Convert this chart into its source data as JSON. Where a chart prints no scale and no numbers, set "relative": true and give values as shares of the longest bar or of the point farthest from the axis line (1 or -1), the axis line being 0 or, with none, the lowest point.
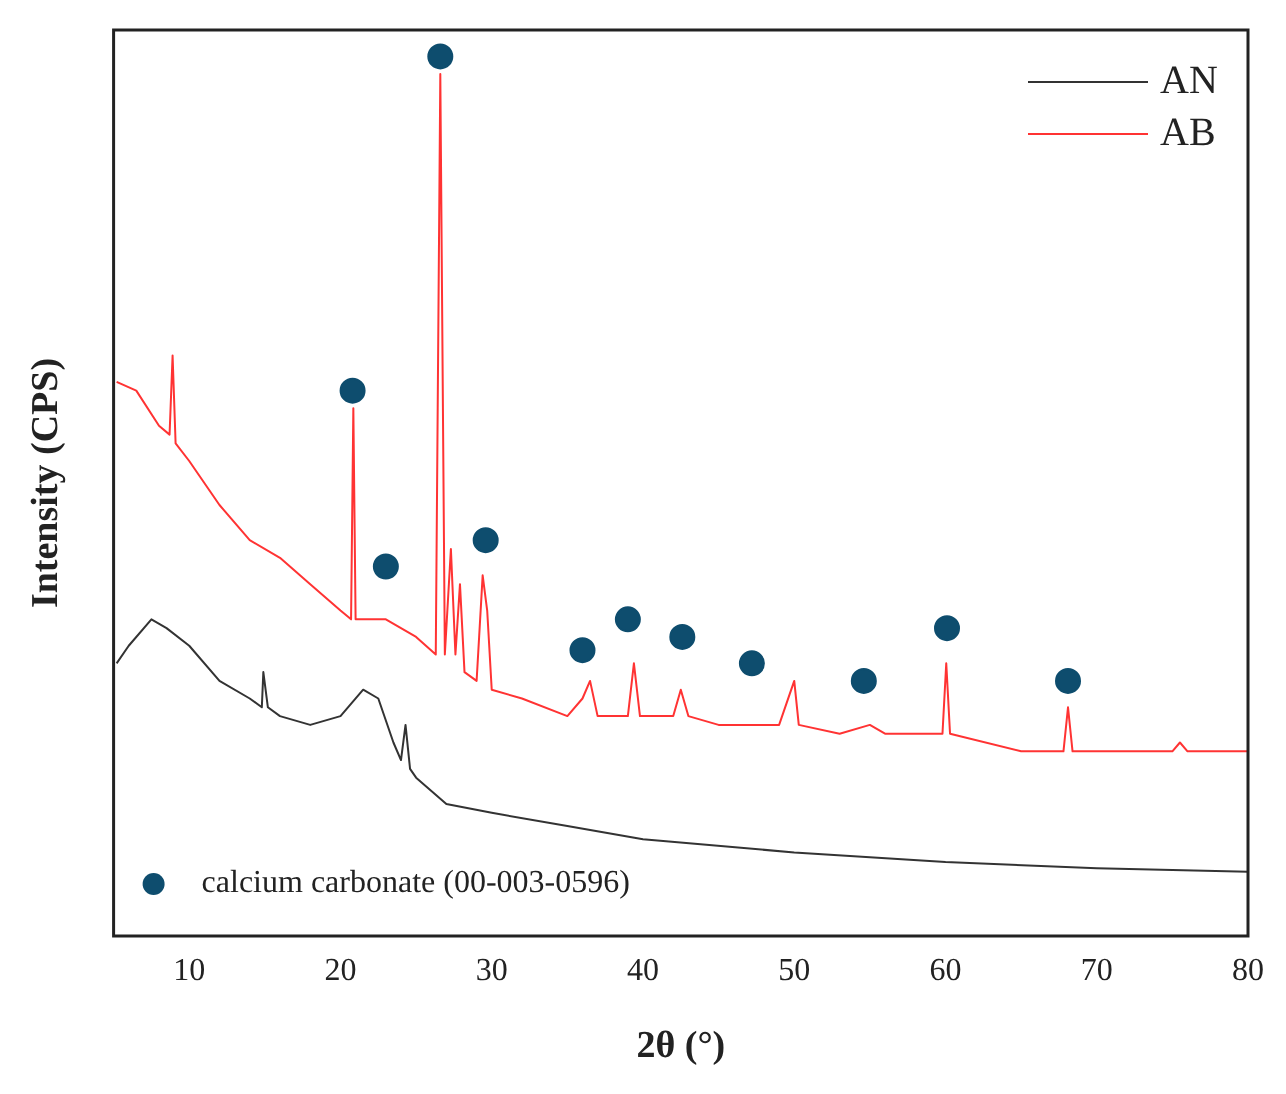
{
  "chart_data": {
    "type": "line",
    "relative": true,
    "xlabel": "2θ (°)",
    "ylabel": "Intensity (CPS)",
    "xlim": [
      5,
      80
    ],
    "xticks": [
      10,
      20,
      30,
      40,
      50,
      60,
      70,
      80
    ],
    "grid": false,
    "legend": "top right",
    "line_style": "solid",
    "marker": "none",
    "series": [
      {
        "name": "AN",
        "color": "#333333",
        "x": [
          5.2,
          6,
          7.5,
          8.5,
          10,
          12,
          14,
          14.8,
          14.9,
          15.2,
          16,
          18,
          20,
          21.5,
          22.5,
          23.5,
          24,
          24.3,
          24.6,
          25,
          27,
          30,
          35,
          40,
          50,
          60,
          70,
          80
        ],
        "values": [
          0.31,
          0.33,
          0.36,
          0.35,
          0.33,
          0.29,
          0.27,
          0.26,
          0.3,
          0.26,
          0.25,
          0.24,
          0.25,
          0.28,
          0.27,
          0.22,
          0.2,
          0.24,
          0.19,
          0.18,
          0.15,
          0.14,
          0.125,
          0.11,
          0.095,
          0.084,
          0.077,
          0.073
        ]
      },
      {
        "name": "AB",
        "color": "#ff3333",
        "x": [
          5.2,
          6.5,
          8,
          8.7,
          8.9,
          9.1,
          10,
          12,
          14,
          16,
          18,
          20,
          20.7,
          20.85,
          21,
          22,
          23,
          24,
          25,
          26.3,
          26.6,
          26.9,
          27.3,
          27.6,
          27.9,
          28.2,
          29,
          29.4,
          29.7,
          30,
          32,
          35,
          36,
          36.5,
          37,
          39,
          39.4,
          39.8,
          42,
          42.5,
          43,
          45,
          47,
          49,
          50,
          50.3,
          53,
          55,
          56,
          59.8,
          60.05,
          60.3,
          65,
          67.8,
          68.1,
          68.4,
          75,
          75.5,
          76,
          80
        ],
        "values": [
          0.63,
          0.62,
          0.58,
          0.57,
          0.66,
          0.56,
          0.54,
          0.49,
          0.45,
          0.43,
          0.4,
          0.37,
          0.36,
          0.6,
          0.36,
          0.36,
          0.36,
          0.35,
          0.34,
          0.32,
          0.98,
          0.32,
          0.44,
          0.32,
          0.4,
          0.3,
          0.29,
          0.41,
          0.37,
          0.28,
          0.27,
          0.25,
          0.27,
          0.29,
          0.25,
          0.25,
          0.31,
          0.25,
          0.25,
          0.28,
          0.25,
          0.24,
          0.24,
          0.24,
          0.29,
          0.24,
          0.23,
          0.24,
          0.23,
          0.23,
          0.31,
          0.23,
          0.21,
          0.21,
          0.26,
          0.21,
          0.21,
          0.22,
          0.21,
          0.21
        ]
      },
      {
        "name": "calcium carbonate (00-003-0596)",
        "type": "scatter",
        "marker": "circle",
        "color": "#0e4d6e",
        "x": [
          20.8,
          23,
          26.6,
          29.6,
          36,
          39,
          42.6,
          47.2,
          54.6,
          60.1,
          68.1
        ],
        "values": [
          0.62,
          0.42,
          1.0,
          0.45,
          0.325,
          0.36,
          0.34,
          0.31,
          0.29,
          0.35,
          0.29
        ]
      }
    ]
  }
}
